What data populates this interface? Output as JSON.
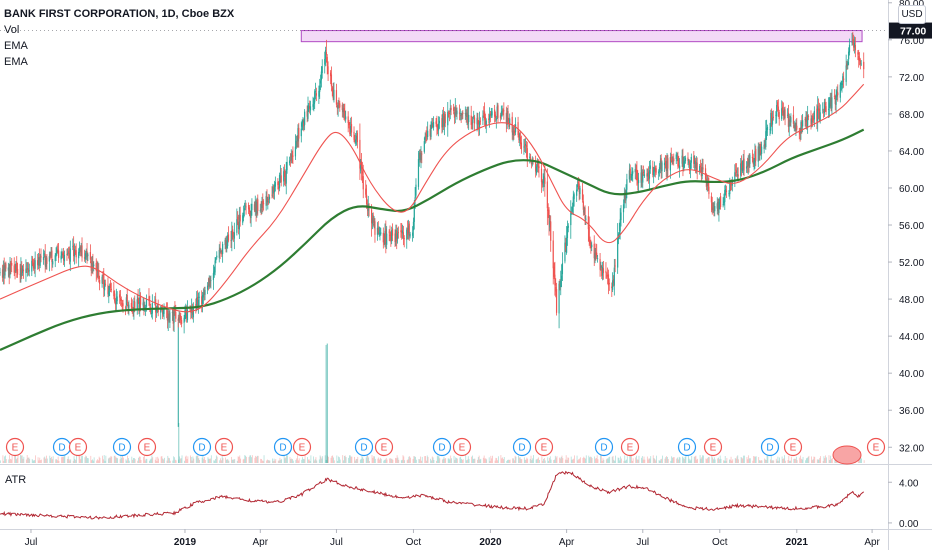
{
  "header": {
    "symbol_title": "BANK FIRST CORPORATION, 1D, Cboe BZX",
    "indicators": [
      "Vol",
      "EMA",
      "EMA"
    ],
    "currency_button": "USD"
  },
  "price_badge": "77.00",
  "atr_pane": {
    "label": "ATR",
    "ticks": [
      "4.00",
      "0.00"
    ]
  },
  "colors": {
    "up": "#26a69a",
    "down": "#ef5350",
    "ema_fast": "#ef5350",
    "ema_slow": "#2e7d32",
    "atr_line": "#b22833",
    "resistance_zone_fill": "#f3d9f7",
    "resistance_zone_stroke": "#b04bc4",
    "price_badge": "#131722",
    "dividend_marker": "#2196f3",
    "earnings_marker": "#ef5350"
  },
  "event_markers": [
    {
      "type": "E",
      "date": "2018-06"
    },
    {
      "type": "D",
      "date": "2018-09"
    },
    {
      "type": "E",
      "date": "2018-10"
    },
    {
      "type": "D",
      "date": "2018-12"
    },
    {
      "type": "E",
      "date": "2019-01"
    },
    {
      "type": "D",
      "date": "2019-03"
    },
    {
      "type": "E",
      "date": "2019-04"
    },
    {
      "type": "D",
      "date": "2019-06"
    },
    {
      "type": "E",
      "date": "2019-07"
    },
    {
      "type": "D",
      "date": "2019-09"
    },
    {
      "type": "E",
      "date": "2019-10"
    },
    {
      "type": "D",
      "date": "2019-12"
    },
    {
      "type": "E",
      "date": "2020-01"
    },
    {
      "type": "D",
      "date": "2020-03"
    },
    {
      "type": "E",
      "date": "2020-04"
    },
    {
      "type": "D",
      "date": "2020-06"
    },
    {
      "type": "E",
      "date": "2020-07"
    },
    {
      "type": "D",
      "date": "2020-09"
    },
    {
      "type": "E",
      "date": "2020-10"
    },
    {
      "type": "D",
      "date": "2020-12"
    },
    {
      "type": "E",
      "date": "2021-01"
    },
    {
      "type": "E",
      "date": "2021-04"
    }
  ],
  "chart_data": {
    "type": "candlestick",
    "title": "BANK FIRST CORPORATION, 1D, Cboe BZX",
    "x_tick_labels": [
      "Jul",
      "2019",
      "Apr",
      "Jul",
      "Oct",
      "2020",
      "Apr",
      "Jul",
      "Oct",
      "2021",
      "Apr"
    ],
    "x_tick_dates": [
      "2018-07-01",
      "2019-01-01",
      "2019-04-01",
      "2019-07-01",
      "2019-10-01",
      "2020-01-01",
      "2020-04-01",
      "2020-07-01",
      "2020-10-01",
      "2021-01-01",
      "2021-04-01"
    ],
    "x_range": [
      "2018-05-25",
      "2021-04-20"
    ],
    "y_tick_labels": [
      "80.00",
      "76.00",
      "72.00",
      "68.00",
      "64.00",
      "60.00",
      "56.00",
      "52.00",
      "48.00",
      "44.00",
      "40.00",
      "36.00",
      "32.00"
    ],
    "ylim": [
      30.3,
      80.3
    ],
    "last_price": 77.0,
    "resistance_zone": {
      "from": "2019-05-20",
      "to": "2021-03-20",
      "low": 75.8,
      "high": 77.0
    },
    "price_series": [
      {
        "date": "2018-05-25",
        "close": 51.0
      },
      {
        "date": "2018-06-10",
        "close": 51.2
      },
      {
        "date": "2018-06-25",
        "close": 51.6
      },
      {
        "date": "2018-07-15",
        "close": 52.2
      },
      {
        "date": "2018-08-05",
        "close": 52.7
      },
      {
        "date": "2018-08-25",
        "close": 53.2
      },
      {
        "date": "2018-09-05",
        "close": 52.6
      },
      {
        "date": "2018-09-20",
        "close": 50.4
      },
      {
        "date": "2018-10-10",
        "close": 48.2
      },
      {
        "date": "2018-10-25",
        "close": 47.3
      },
      {
        "date": "2018-11-15",
        "close": 47.5
      },
      {
        "date": "2018-12-05",
        "close": 46.8
      },
      {
        "date": "2018-12-24",
        "close": 45.8
      },
      {
        "date": "2019-01-10",
        "close": 47.0
      },
      {
        "date": "2019-01-25",
        "close": 48.3
      },
      {
        "date": "2019-02-10",
        "close": 52.5
      },
      {
        "date": "2019-02-25",
        "close": 55.0
      },
      {
        "date": "2019-03-15",
        "close": 57.6
      },
      {
        "date": "2019-04-01",
        "close": 58.0
      },
      {
        "date": "2019-04-15",
        "close": 59.5
      },
      {
        "date": "2019-05-01",
        "close": 61.5
      },
      {
        "date": "2019-05-15",
        "close": 65.5
      },
      {
        "date": "2019-05-28",
        "close": 68.5
      },
      {
        "date": "2019-06-10",
        "close": 70.5
      },
      {
        "date": "2019-06-18",
        "close": 74.3
      },
      {
        "date": "2019-06-28",
        "close": 70.0
      },
      {
        "date": "2019-07-10",
        "close": 68.0
      },
      {
        "date": "2019-07-25",
        "close": 65.0
      },
      {
        "date": "2019-08-05",
        "close": 58.5
      },
      {
        "date": "2019-08-15",
        "close": 55.5
      },
      {
        "date": "2019-08-30",
        "close": 54.5
      },
      {
        "date": "2019-09-15",
        "close": 55.0
      },
      {
        "date": "2019-09-30",
        "close": 55.5
      },
      {
        "date": "2019-10-05",
        "close": 62.0
      },
      {
        "date": "2019-10-15",
        "close": 66.0
      },
      {
        "date": "2019-10-30",
        "close": 66.5
      },
      {
        "date": "2019-11-15",
        "close": 68.5
      },
      {
        "date": "2019-11-30",
        "close": 67.8
      },
      {
        "date": "2019-12-10",
        "close": 67.0
      },
      {
        "date": "2019-12-25",
        "close": 67.3
      },
      {
        "date": "2020-01-10",
        "close": 68.2
      },
      {
        "date": "2020-01-25",
        "close": 67.0
      },
      {
        "date": "2020-02-10",
        "close": 64.5
      },
      {
        "date": "2020-02-25",
        "close": 62.0
      },
      {
        "date": "2020-03-05",
        "close": 60.5
      },
      {
        "date": "2020-03-12",
        "close": 56.0
      },
      {
        "date": "2020-03-20",
        "close": 47.0
      },
      {
        "date": "2020-03-25",
        "close": 50.5
      },
      {
        "date": "2020-04-05",
        "close": 57.0
      },
      {
        "date": "2020-04-15",
        "close": 60.5
      },
      {
        "date": "2020-04-25",
        "close": 55.5
      },
      {
        "date": "2020-05-05",
        "close": 52.5
      },
      {
        "date": "2020-05-15",
        "close": 50.5
      },
      {
        "date": "2020-05-25",
        "close": 49.0
      },
      {
        "date": "2020-06-05",
        "close": 57.0
      },
      {
        "date": "2020-06-15",
        "close": 61.5
      },
      {
        "date": "2020-06-30",
        "close": 61.0
      },
      {
        "date": "2020-07-15",
        "close": 62.0
      },
      {
        "date": "2020-07-30",
        "close": 62.5
      },
      {
        "date": "2020-08-15",
        "close": 63.0
      },
      {
        "date": "2020-08-30",
        "close": 62.5
      },
      {
        "date": "2020-09-10",
        "close": 62.0
      },
      {
        "date": "2020-09-25",
        "close": 57.5
      },
      {
        "date": "2020-10-05",
        "close": 59.0
      },
      {
        "date": "2020-10-20",
        "close": 61.5
      },
      {
        "date": "2020-11-05",
        "close": 63.0
      },
      {
        "date": "2020-11-20",
        "close": 64.0
      },
      {
        "date": "2020-12-05",
        "close": 68.5
      },
      {
        "date": "2020-12-20",
        "close": 67.5
      },
      {
        "date": "2021-01-05",
        "close": 66.5
      },
      {
        "date": "2021-01-20",
        "close": 67.5
      },
      {
        "date": "2021-02-05",
        "close": 69.0
      },
      {
        "date": "2021-02-20",
        "close": 70.0
      },
      {
        "date": "2021-03-01",
        "close": 72.5
      },
      {
        "date": "2021-03-08",
        "close": 76.5
      },
      {
        "date": "2021-03-15",
        "close": 74.5
      },
      {
        "date": "2021-03-22",
        "close": 72.5
      }
    ],
    "ema_fast": [
      {
        "date": "2018-05-25",
        "value": 48.0
      },
      {
        "date": "2018-07-15",
        "value": 50.0
      },
      {
        "date": "2018-08-25",
        "value": 51.6
      },
      {
        "date": "2018-09-15",
        "value": 51.5
      },
      {
        "date": "2018-10-15",
        "value": 49.5
      },
      {
        "date": "2018-11-15",
        "value": 48.0
      },
      {
        "date": "2018-12-15",
        "value": 46.9
      },
      {
        "date": "2019-01-05",
        "value": 46.5
      },
      {
        "date": "2019-01-25",
        "value": 47.2
      },
      {
        "date": "2019-02-20",
        "value": 50.0
      },
      {
        "date": "2019-03-20",
        "value": 53.5
      },
      {
        "date": "2019-04-20",
        "value": 56.5
      },
      {
        "date": "2019-05-20",
        "value": 61.0
      },
      {
        "date": "2019-06-15",
        "value": 65.0
      },
      {
        "date": "2019-07-01",
        "value": 66.4
      },
      {
        "date": "2019-07-20",
        "value": 64.5
      },
      {
        "date": "2019-08-10",
        "value": 60.5
      },
      {
        "date": "2019-09-05",
        "value": 57.5
      },
      {
        "date": "2019-09-25",
        "value": 57.3
      },
      {
        "date": "2019-10-15",
        "value": 60.5
      },
      {
        "date": "2019-11-10",
        "value": 64.2
      },
      {
        "date": "2019-12-10",
        "value": 66.2
      },
      {
        "date": "2020-01-10",
        "value": 67.2
      },
      {
        "date": "2020-02-01",
        "value": 66.8
      },
      {
        "date": "2020-02-25",
        "value": 64.0
      },
      {
        "date": "2020-03-15",
        "value": 60.5
      },
      {
        "date": "2020-04-01",
        "value": 57.5
      },
      {
        "date": "2020-04-25",
        "value": 56.5
      },
      {
        "date": "2020-05-20",
        "value": 53.5
      },
      {
        "date": "2020-06-10",
        "value": 55.5
      },
      {
        "date": "2020-06-30",
        "value": 58.5
      },
      {
        "date": "2020-07-25",
        "value": 61.0
      },
      {
        "date": "2020-08-25",
        "value": 62.3
      },
      {
        "date": "2020-09-25",
        "value": 61.0
      },
      {
        "date": "2020-10-20",
        "value": 60.2
      },
      {
        "date": "2020-11-20",
        "value": 62.2
      },
      {
        "date": "2020-12-20",
        "value": 65.5
      },
      {
        "date": "2021-01-20",
        "value": 66.8
      },
      {
        "date": "2021-02-20",
        "value": 68.3
      },
      {
        "date": "2021-03-10",
        "value": 70.0
      },
      {
        "date": "2021-03-22",
        "value": 71.2
      }
    ],
    "ema_slow": [
      {
        "date": "2018-05-25",
        "value": 42.5
      },
      {
        "date": "2018-07-01",
        "value": 44.0
      },
      {
        "date": "2018-08-10",
        "value": 45.5
      },
      {
        "date": "2018-09-20",
        "value": 46.5
      },
      {
        "date": "2018-11-01",
        "value": 46.9
      },
      {
        "date": "2018-12-15",
        "value": 47.0
      },
      {
        "date": "2019-01-20",
        "value": 47.1
      },
      {
        "date": "2019-02-20",
        "value": 48.0
      },
      {
        "date": "2019-03-25",
        "value": 49.5
      },
      {
        "date": "2019-04-25",
        "value": 51.5
      },
      {
        "date": "2019-05-25",
        "value": 54.0
      },
      {
        "date": "2019-06-25",
        "value": 56.8
      },
      {
        "date": "2019-07-25",
        "value": 58.2
      },
      {
        "date": "2019-08-25",
        "value": 57.7
      },
      {
        "date": "2019-09-20",
        "value": 57.4
      },
      {
        "date": "2019-10-20",
        "value": 58.8
      },
      {
        "date": "2019-11-20",
        "value": 60.5
      },
      {
        "date": "2019-12-25",
        "value": 62.0
      },
      {
        "date": "2020-01-25",
        "value": 63.0
      },
      {
        "date": "2020-02-25",
        "value": 63.0
      },
      {
        "date": "2020-03-20",
        "value": 62.0
      },
      {
        "date": "2020-04-25",
        "value": 60.5
      },
      {
        "date": "2020-05-25",
        "value": 59.2
      },
      {
        "date": "2020-06-25",
        "value": 59.5
      },
      {
        "date": "2020-07-25",
        "value": 60.2
      },
      {
        "date": "2020-08-25",
        "value": 60.8
      },
      {
        "date": "2020-09-25",
        "value": 60.6
      },
      {
        "date": "2020-10-25",
        "value": 60.8
      },
      {
        "date": "2020-11-25",
        "value": 61.8
      },
      {
        "date": "2020-12-25",
        "value": 63.2
      },
      {
        "date": "2021-01-25",
        "value": 64.2
      },
      {
        "date": "2021-02-25",
        "value": 65.2
      },
      {
        "date": "2021-03-22",
        "value": 66.3
      }
    ],
    "volume_spikes": [
      {
        "date": "2018-12-24",
        "value": 0.0
      },
      {
        "date": "2019-06-18",
        "value": 0.0
      }
    ],
    "atr": {
      "ylim": [
        -0.5,
        5.5
      ],
      "series": [
        {
          "date": "2018-05-25",
          "value": 0.9
        },
        {
          "date": "2018-07-15",
          "value": 0.75
        },
        {
          "date": "2018-09-15",
          "value": 0.5
        },
        {
          "date": "2018-11-01",
          "value": 0.7
        },
        {
          "date": "2018-12-20",
          "value": 1.0
        },
        {
          "date": "2019-01-15",
          "value": 2.0
        },
        {
          "date": "2019-02-15",
          "value": 2.6
        },
        {
          "date": "2019-03-20",
          "value": 2.2
        },
        {
          "date": "2019-04-20",
          "value": 2.0
        },
        {
          "date": "2019-05-20",
          "value": 2.8
        },
        {
          "date": "2019-06-20",
          "value": 4.3
        },
        {
          "date": "2019-07-10",
          "value": 3.7
        },
        {
          "date": "2019-08-10",
          "value": 3.1
        },
        {
          "date": "2019-09-15",
          "value": 2.5
        },
        {
          "date": "2019-10-15",
          "value": 2.7
        },
        {
          "date": "2019-11-15",
          "value": 2.0
        },
        {
          "date": "2019-12-15",
          "value": 1.8
        },
        {
          "date": "2020-01-15",
          "value": 1.5
        },
        {
          "date": "2020-02-15",
          "value": 1.4
        },
        {
          "date": "2020-03-05",
          "value": 1.8
        },
        {
          "date": "2020-03-20",
          "value": 4.8
        },
        {
          "date": "2020-04-05",
          "value": 5.0
        },
        {
          "date": "2020-04-25",
          "value": 3.8
        },
        {
          "date": "2020-05-20",
          "value": 3.0
        },
        {
          "date": "2020-06-15",
          "value": 3.6
        },
        {
          "date": "2020-07-05",
          "value": 3.4
        },
        {
          "date": "2020-08-01",
          "value": 2.3
        },
        {
          "date": "2020-08-25",
          "value": 1.5
        },
        {
          "date": "2020-09-25",
          "value": 1.3
        },
        {
          "date": "2020-10-20",
          "value": 1.7
        },
        {
          "date": "2020-11-20",
          "value": 1.6
        },
        {
          "date": "2020-12-20",
          "value": 1.4
        },
        {
          "date": "2021-01-20",
          "value": 1.5
        },
        {
          "date": "2021-02-20",
          "value": 1.8
        },
        {
          "date": "2021-03-08",
          "value": 3.1
        },
        {
          "date": "2021-03-15",
          "value": 2.5
        },
        {
          "date": "2021-03-22",
          "value": 3.2
        }
      ]
    }
  }
}
